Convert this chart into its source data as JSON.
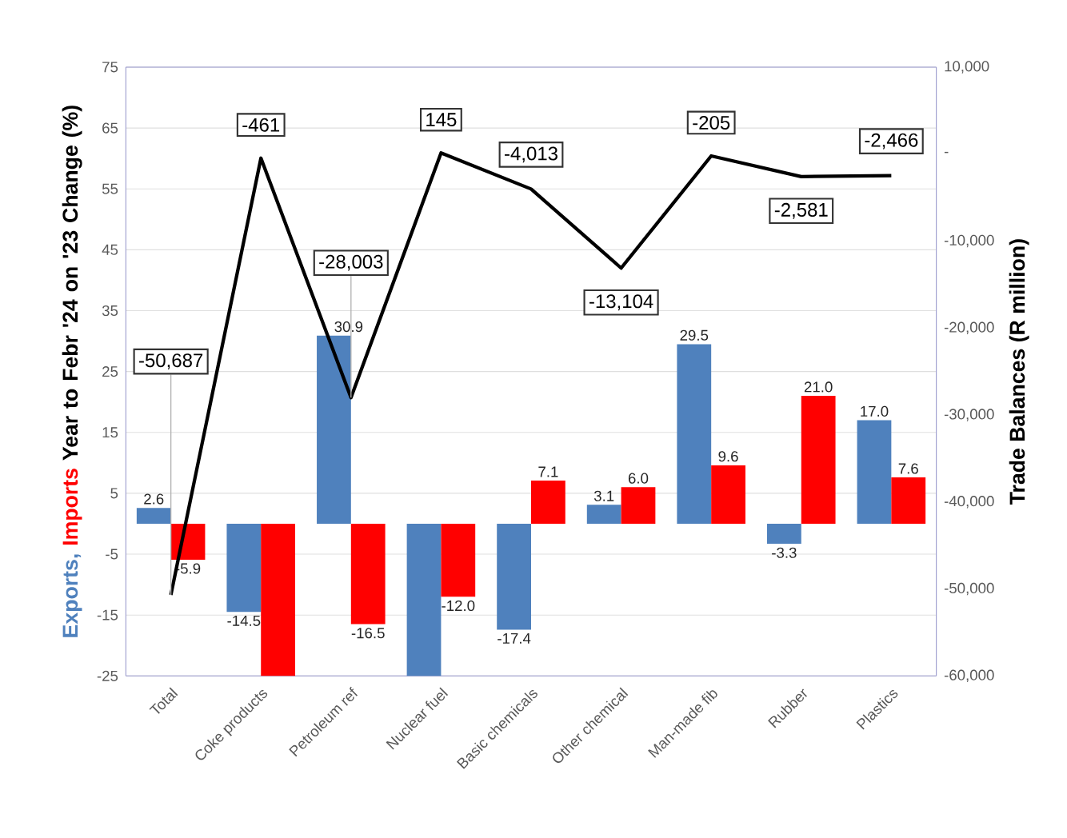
{
  "chart_data": {
    "type": "bar",
    "categories": [
      "Total",
      "Coke products",
      "Petroleum ref",
      "Nuclear fuel",
      "Basic chemicals",
      "Other chemical",
      "Man-made fib",
      "Rubber",
      "Plastics"
    ],
    "ylabel": "Year to Febr '24 on '23 Change (%)",
    "y2label": "Trade Balances (R million)",
    "ylim": [
      -25,
      75
    ],
    "yticks": [
      -25,
      -15,
      -5,
      5,
      15,
      25,
      35,
      45,
      55,
      65,
      75
    ],
    "y2lim": [
      -60000,
      10000
    ],
    "y2ticks": [
      {
        "value": -60000,
        "label": "-60,000"
      },
      {
        "value": -50000,
        "label": "-50,000"
      },
      {
        "value": -40000,
        "label": "-40,000"
      },
      {
        "value": -30000,
        "label": "-30,000"
      },
      {
        "value": -20000,
        "label": "-20,000"
      },
      {
        "value": -10000,
        "label": "-10,000"
      },
      {
        "value": 0,
        "label": "-"
      },
      {
        "value": 10000,
        "label": "10,000"
      }
    ],
    "grid": "y",
    "series": [
      {
        "name": "Exports,",
        "color": "#4f81bd",
        "values": [
          2.6,
          -14.5,
          30.9,
          -25,
          -17.4,
          3.1,
          29.5,
          -3.3,
          17.0
        ],
        "value_labels": [
          "2.6",
          "-14.5",
          "30.9",
          null,
          "-17.4",
          "3.1",
          "29.5",
          "-3.3",
          "17.0"
        ]
      },
      {
        "name": "Imports",
        "color": "#ff0000",
        "values": [
          -5.9,
          -25,
          -16.5,
          -12.0,
          7.1,
          6.0,
          9.6,
          21.0,
          7.6
        ],
        "value_labels": [
          "-5.9",
          null,
          "-16.5",
          "-12.0",
          "7.1",
          "6.0",
          "9.6",
          "21.0",
          "7.6"
        ]
      },
      {
        "type": "line",
        "axis": "y2",
        "color": "#000000",
        "values": [
          -50687,
          -461,
          -28003,
          145,
          -4013,
          -13104,
          -205,
          -2581,
          -2466
        ],
        "value_labels": [
          "-50,687",
          "-461",
          "-28,003",
          "145",
          "-4,013",
          "-13,104",
          "-205",
          "-2,581",
          "-2,466"
        ]
      }
    ]
  }
}
